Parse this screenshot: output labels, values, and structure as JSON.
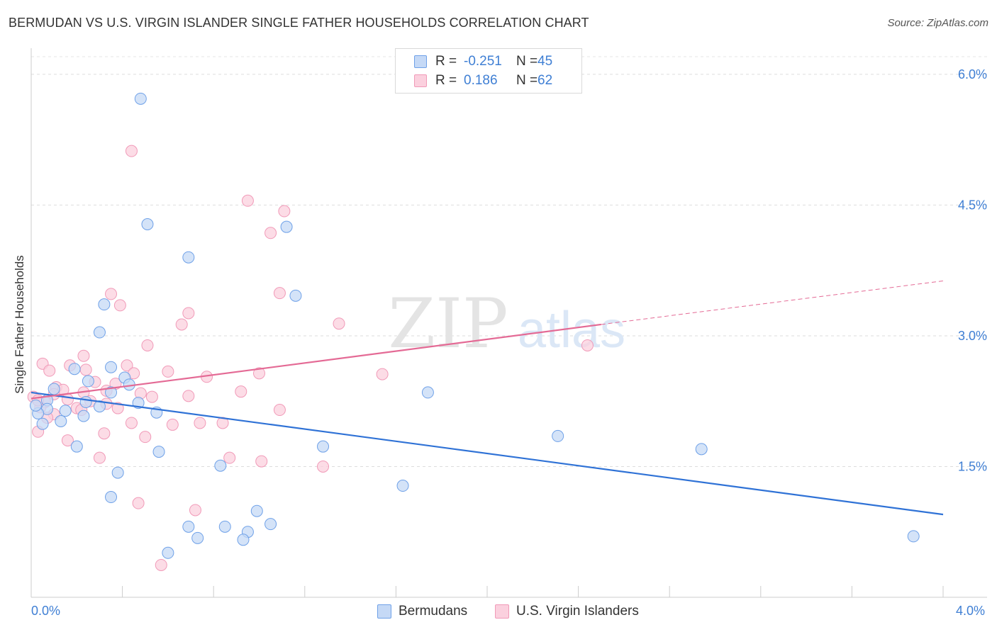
{
  "title": "BERMUDAN VS U.S. VIRGIN ISLANDER SINGLE FATHER HOUSEHOLDS CORRELATION CHART",
  "source": "Source: ZipAtlas.com",
  "watermark": {
    "zip": "ZIP",
    "atlas": "atlas"
  },
  "legend_top": [
    {
      "series": "Bermudans",
      "r_label": "R =",
      "r_value": "-0.251",
      "n_label": "N =",
      "n_value": "45"
    },
    {
      "series": "U.S. Virgin Islanders",
      "r_label": "R =",
      "r_value": "0.186",
      "n_label": "N =",
      "n_value": "62"
    }
  ],
  "x_axis_labels": {
    "left": "0.0%",
    "right": "4.0%"
  },
  "chart_data": {
    "type": "scatter",
    "title": "BERMUDAN VS U.S. VIRGIN ISLANDER SINGLE FATHER HOUSEHOLDS CORRELATION CHART",
    "xlabel": "",
    "ylabel": "Single Father Households",
    "xlim": [
      0,
      4.0
    ],
    "ylim": [
      0,
      6.3
    ],
    "y_ticks": [
      1.5,
      3.0,
      4.5,
      6.0
    ],
    "y_tick_labels": [
      "1.5%",
      "3.0%",
      "4.5%",
      "6.0%"
    ],
    "x_tick_count": 10,
    "grid": "horizontal dashed",
    "legend_position": "top-center",
    "colors": {
      "Bermudans": "#6fa1e8",
      "U.S. Virgin Islanders": "#f19ab8",
      "Bermudans_line": "#2f72d6",
      "U.S. Virgin Islanders_line": "#e46a95"
    },
    "series": [
      {
        "name": "Bermudans",
        "trend": {
          "x": [
            0.0,
            4.0
          ],
          "y": [
            2.35,
            0.95
          ]
        },
        "points": [
          [
            0.48,
            5.72
          ],
          [
            0.51,
            4.28
          ],
          [
            1.12,
            4.25
          ],
          [
            0.69,
            3.9
          ],
          [
            1.16,
            3.46
          ],
          [
            0.32,
            3.36
          ],
          [
            0.3,
            3.04
          ],
          [
            0.35,
            2.64
          ],
          [
            0.19,
            2.62
          ],
          [
            0.41,
            2.52
          ],
          [
            0.25,
            2.48
          ],
          [
            0.43,
            2.44
          ],
          [
            0.1,
            2.39
          ],
          [
            0.35,
            2.35
          ],
          [
            0.07,
            2.26
          ],
          [
            0.24,
            2.24
          ],
          [
            0.47,
            2.23
          ],
          [
            0.3,
            2.19
          ],
          [
            0.07,
            2.16
          ],
          [
            0.15,
            2.14
          ],
          [
            0.03,
            2.11
          ],
          [
            0.55,
            2.12
          ],
          [
            0.23,
            2.08
          ],
          [
            0.13,
            2.02
          ],
          [
            0.05,
            1.99
          ],
          [
            0.2,
            1.73
          ],
          [
            0.56,
            1.67
          ],
          [
            1.28,
            1.73
          ],
          [
            0.38,
            1.43
          ],
          [
            0.83,
            1.51
          ],
          [
            0.35,
            1.15
          ],
          [
            1.63,
            1.28
          ],
          [
            0.99,
            0.99
          ],
          [
            0.69,
            0.81
          ],
          [
            0.85,
            0.81
          ],
          [
            1.05,
            0.84
          ],
          [
            0.95,
            0.75
          ],
          [
            0.73,
            0.68
          ],
          [
            0.93,
            0.66
          ],
          [
            0.6,
            0.51
          ],
          [
            1.74,
            2.35
          ],
          [
            2.31,
            1.85
          ],
          [
            2.94,
            1.7
          ],
          [
            3.87,
            0.7
          ],
          [
            0.02,
            2.2
          ]
        ]
      },
      {
        "name": "U.S. Virgin Islanders",
        "trend": {
          "x": [
            0.0,
            2.5
          ],
          "y": [
            2.28,
            3.13
          ]
        },
        "trend_extension": {
          "x": [
            2.5,
            4.0
          ],
          "y": [
            3.13,
            3.63
          ]
        },
        "points": [
          [
            0.44,
            5.12
          ],
          [
            0.95,
            4.55
          ],
          [
            1.11,
            4.43
          ],
          [
            1.05,
            4.18
          ],
          [
            1.09,
            3.49
          ],
          [
            0.35,
            3.48
          ],
          [
            0.39,
            3.35
          ],
          [
            0.69,
            3.26
          ],
          [
            0.66,
            3.13
          ],
          [
            1.35,
            3.14
          ],
          [
            0.51,
            2.89
          ],
          [
            2.44,
            2.89
          ],
          [
            0.23,
            2.77
          ],
          [
            0.05,
            2.68
          ],
          [
            0.17,
            2.66
          ],
          [
            0.42,
            2.66
          ],
          [
            0.08,
            2.6
          ],
          [
            0.24,
            2.61
          ],
          [
            0.6,
            2.59
          ],
          [
            0.45,
            2.57
          ],
          [
            1.0,
            2.57
          ],
          [
            1.54,
            2.56
          ],
          [
            0.77,
            2.53
          ],
          [
            0.28,
            2.47
          ],
          [
            0.37,
            2.45
          ],
          [
            0.11,
            2.41
          ],
          [
            0.14,
            2.38
          ],
          [
            0.33,
            2.37
          ],
          [
            0.23,
            2.35
          ],
          [
            0.48,
            2.34
          ],
          [
            0.92,
            2.36
          ],
          [
            0.53,
            2.3
          ],
          [
            0.01,
            2.3
          ],
          [
            0.16,
            2.27
          ],
          [
            0.69,
            2.31
          ],
          [
            0.26,
            2.25
          ],
          [
            0.06,
            2.24
          ],
          [
            0.33,
            2.22
          ],
          [
            0.04,
            2.18
          ],
          [
            0.38,
            2.17
          ],
          [
            0.2,
            2.17
          ],
          [
            0.22,
            2.15
          ],
          [
            1.09,
            2.15
          ],
          [
            0.1,
            2.1
          ],
          [
            0.44,
            2.0
          ],
          [
            0.07,
            2.06
          ],
          [
            0.62,
            1.98
          ],
          [
            0.74,
            2.0
          ],
          [
            0.84,
            2.0
          ],
          [
            0.03,
            1.9
          ],
          [
            0.32,
            1.88
          ],
          [
            0.5,
            1.84
          ],
          [
            0.16,
            1.8
          ],
          [
            0.3,
            1.6
          ],
          [
            0.87,
            1.6
          ],
          [
            1.01,
            1.56
          ],
          [
            1.28,
            1.5
          ],
          [
            0.47,
            1.08
          ],
          [
            0.72,
            1.0
          ],
          [
            0.57,
            0.37
          ],
          [
            0.1,
            2.33
          ],
          [
            0.03,
            2.26
          ]
        ]
      }
    ]
  }
}
